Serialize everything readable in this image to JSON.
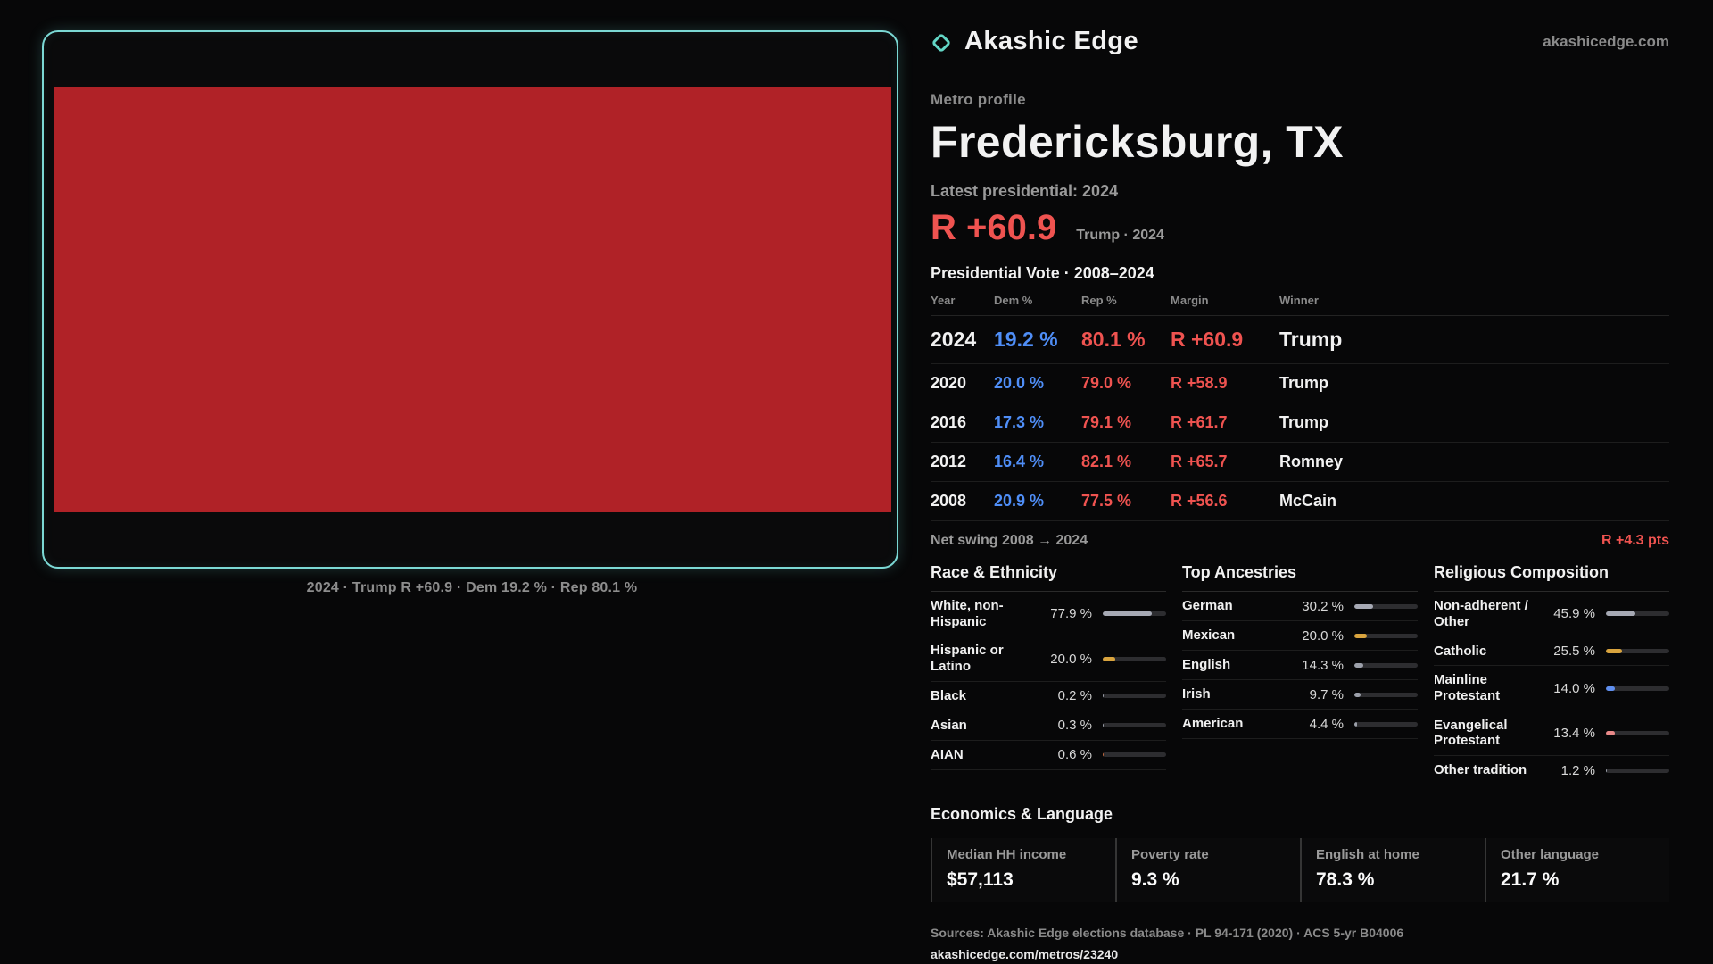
{
  "brand": {
    "name": "Akashic Edge",
    "site": "akashicedge.com",
    "accent_teal": "#63d6c6"
  },
  "map": {
    "fill_color": "#b02227",
    "caption": "2024 · Trump R +60.9 · Dem 19.2 % · Rep 80.1 %"
  },
  "profile": {
    "kicker": "Metro profile",
    "title": "Fredericksburg, TX",
    "latest_label": "Latest presidential: 2024",
    "headline_margin": "R +60.9",
    "headline_note": "Trump · 2024",
    "margin_color": "#ef5350",
    "dem_color": "#4f8ef7"
  },
  "vote_table": {
    "title": "Presidential Vote · 2008–2024",
    "headers": {
      "year": "Year",
      "dem": "Dem %",
      "rep": "Rep %",
      "margin": "Margin",
      "winner": "Winner"
    },
    "rows": [
      {
        "year": "2024",
        "dem": "19.2 %",
        "rep": "80.1 %",
        "margin": "R +60.9",
        "winner": "Trump"
      },
      {
        "year": "2020",
        "dem": "20.0 %",
        "rep": "79.0 %",
        "margin": "R +58.9",
        "winner": "Trump"
      },
      {
        "year": "2016",
        "dem": "17.3 %",
        "rep": "79.1 %",
        "margin": "R +61.7",
        "winner": "Trump"
      },
      {
        "year": "2012",
        "dem": "16.4 %",
        "rep": "82.1 %",
        "margin": "R +65.7",
        "winner": "Romney"
      },
      {
        "year": "2008",
        "dem": "20.9 %",
        "rep": "77.5 %",
        "margin": "R +56.6",
        "winner": "McCain"
      }
    ],
    "net_swing_label": "Net swing 2008 → 2024",
    "net_swing_value": "R +4.3 pts"
  },
  "demographics": [
    {
      "title": "Race & Ethnicity",
      "rows": [
        {
          "label": "White, non-Hispanic",
          "value": "77.9 %",
          "pct": 77.9,
          "color": "#a6a9b4"
        },
        {
          "label": "Hispanic or Latino",
          "value": "20.0 %",
          "pct": 20.0,
          "color": "#d9a43e"
        },
        {
          "label": "Black",
          "value": "0.2 %",
          "pct": 0.2,
          "color": "#9ca0aa"
        },
        {
          "label": "Asian",
          "value": "0.3 %",
          "pct": 0.3,
          "color": "#9ca0aa"
        },
        {
          "label": "AIAN",
          "value": "0.6 %",
          "pct": 0.6,
          "color": "#c4683c"
        }
      ]
    },
    {
      "title": "Top Ancestries",
      "rows": [
        {
          "label": "German",
          "value": "30.2 %",
          "pct": 30.2,
          "color": "#a6a9b4"
        },
        {
          "label": "Mexican",
          "value": "20.0 %",
          "pct": 20.0,
          "color": "#d9a43e"
        },
        {
          "label": "English",
          "value": "14.3 %",
          "pct": 14.3,
          "color": "#9ca0aa"
        },
        {
          "label": "Irish",
          "value": "9.7 %",
          "pct": 9.7,
          "color": "#9ca0aa"
        },
        {
          "label": "American",
          "value": "4.4 %",
          "pct": 4.4,
          "color": "#9ca0aa"
        }
      ]
    },
    {
      "title": "Religious Composition",
      "rows": [
        {
          "label": "Non-adherent / Other",
          "value": "45.9 %",
          "pct": 45.9,
          "color": "#a6a9b4"
        },
        {
          "label": "Catholic",
          "value": "25.5 %",
          "pct": 25.5,
          "color": "#d9a43e"
        },
        {
          "label": "Mainline Protestant",
          "value": "14.0 %",
          "pct": 14.0,
          "color": "#5f8ff0"
        },
        {
          "label": "Evangelical Protestant",
          "value": "13.4 %",
          "pct": 13.4,
          "color": "#e98989"
        },
        {
          "label": "Other tradition",
          "value": "1.2 %",
          "pct": 1.2,
          "color": "#9ca0aa"
        }
      ]
    }
  ],
  "economics": {
    "title": "Economics & Language",
    "stats": [
      {
        "label": "Median HH income",
        "value": "$57,113"
      },
      {
        "label": "Poverty rate",
        "value": "9.3 %"
      },
      {
        "label": "English at home",
        "value": "78.3 %"
      },
      {
        "label": "Other language",
        "value": "21.7 %"
      }
    ]
  },
  "footer": {
    "sources": "Sources: Akashic Edge elections database · PL 94-171 (2020) · ACS 5-yr B04006",
    "permalink": "akashicedge.com/metros/23240"
  }
}
